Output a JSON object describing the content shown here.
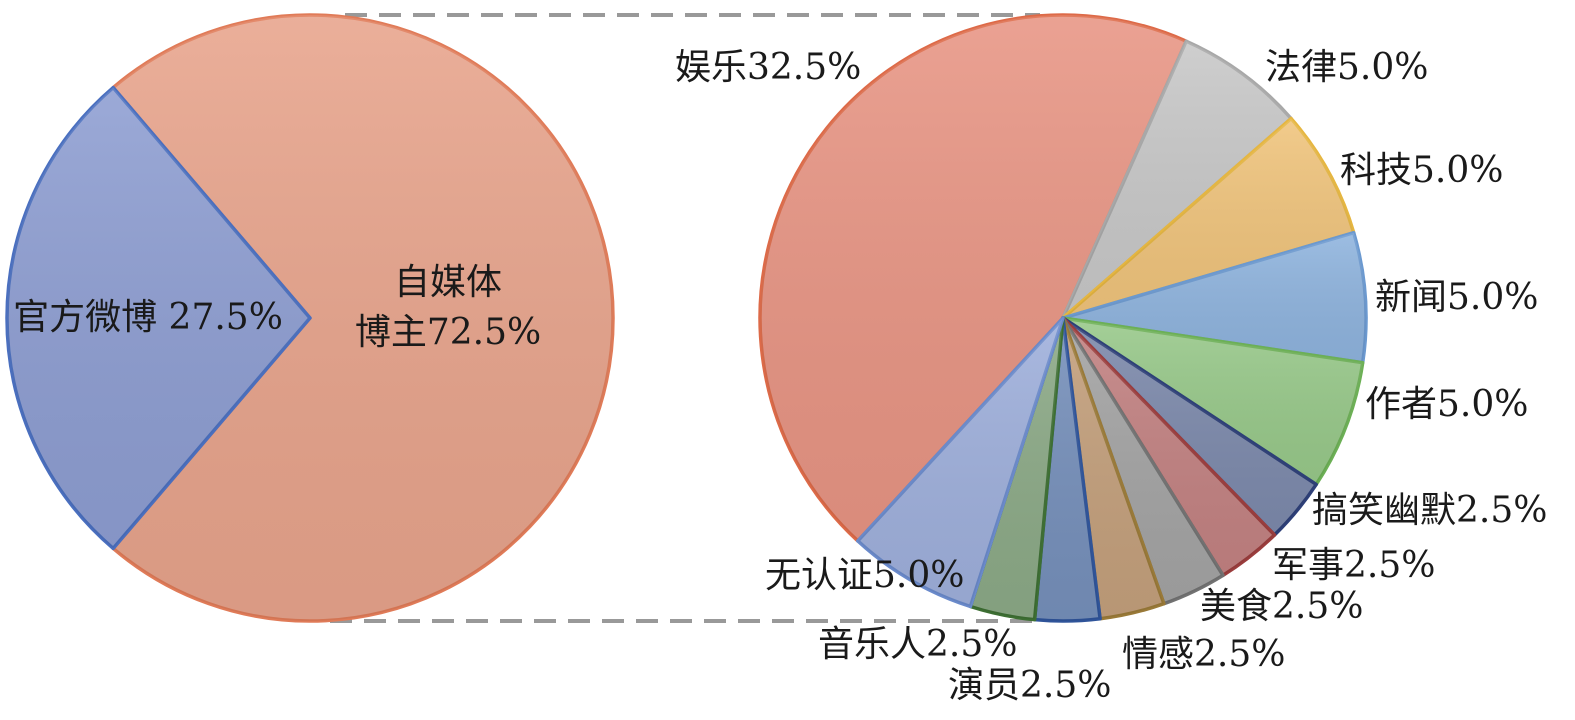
{
  "chart_data": [
    {
      "type": "pie",
      "title": "",
      "slices": [
        {
          "label": "自媒体博主",
          "value": 72.5,
          "text": "自媒体",
          "text2": "博主72.5%",
          "color": "#e8a48c",
          "stroke": "#e07b58"
        },
        {
          "label": "官方微博",
          "value": 27.5,
          "text": "官方微博 27.5%",
          "color": "#8e9ed2",
          "stroke": "#4a6fbf"
        }
      ]
    },
    {
      "type": "pie",
      "title": "",
      "slices": [
        {
          "label": "娱乐",
          "value": 32.5,
          "text": "娱乐32.5%",
          "color": "#e89584",
          "stroke": "#dd6a48"
        },
        {
          "label": "法律",
          "value": 5.0,
          "text": "法律5.0%",
          "color": "#c8c8c8",
          "stroke": "#a8a8a8"
        },
        {
          "label": "科技",
          "value": 5.0,
          "text": "科技5.0%",
          "color": "#f0c47c",
          "stroke": "#e6b640"
        },
        {
          "label": "新闻",
          "value": 5.0,
          "text": "新闻5.0%",
          "color": "#8fb4de",
          "stroke": "#6b99d0"
        },
        {
          "label": "作者",
          "value": 5.0,
          "text": "作者5.0%",
          "color": "#98c98a",
          "stroke": "#6cb055"
        },
        {
          "label": "搞笑幽默",
          "value": 2.5,
          "text": "搞笑幽默2.5%",
          "color": "#7d8aac",
          "stroke": "#2d3f78"
        },
        {
          "label": "军事",
          "value": 2.5,
          "text": "军事2.5%",
          "color": "#c38282",
          "stroke": "#9b3d3d"
        },
        {
          "label": "美食",
          "value": 2.5,
          "text": "美食2.5%",
          "color": "#a4a4a4",
          "stroke": "#727272"
        },
        {
          "label": "情感",
          "value": 2.5,
          "text": "情感2.5%",
          "color": "#c4a07c",
          "stroke": "#9a7a38"
        },
        {
          "label": "演员",
          "value": 2.5,
          "text": "演员2.5%",
          "color": "#7690bb",
          "stroke": "#2f549a"
        },
        {
          "label": "音乐人",
          "value": 2.5,
          "text": "音乐人2.5%",
          "color": "#8caa87",
          "stroke": "#3d6f33"
        },
        {
          "label": "无认证",
          "value": 5.0,
          "text": "无认证5.0%",
          "color": "#9fb0dc",
          "stroke": "#6a8acb"
        }
      ]
    }
  ]
}
